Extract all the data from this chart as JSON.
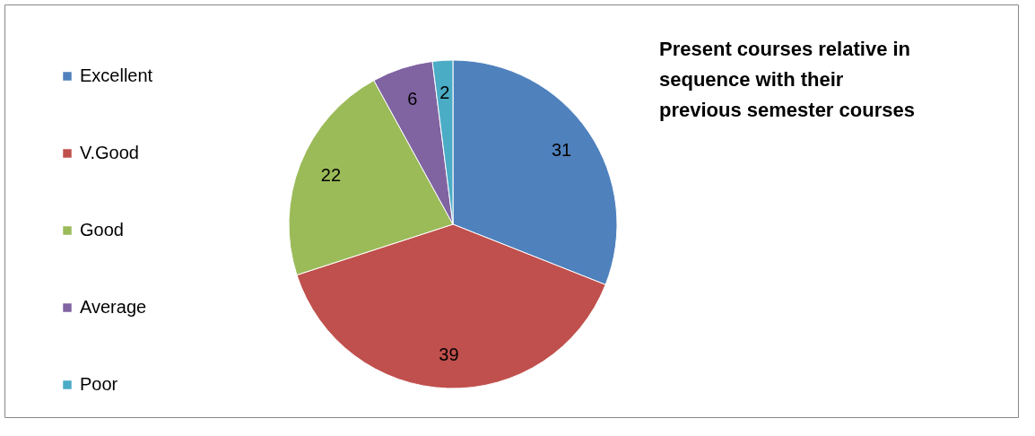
{
  "chart_data": {
    "type": "pie",
    "title": "Present courses relative in\nsequence with their\nprevious semester courses",
    "categories": [
      "Excellent",
      "V.Good",
      "Good",
      "Average",
      "Poor"
    ],
    "values": [
      31,
      39,
      22,
      6,
      2
    ],
    "colors": [
      "#4f81bd",
      "#c0504d",
      "#9bbb59",
      "#8064a2",
      "#4bacc6"
    ],
    "data_labels": true,
    "legend": "left"
  }
}
